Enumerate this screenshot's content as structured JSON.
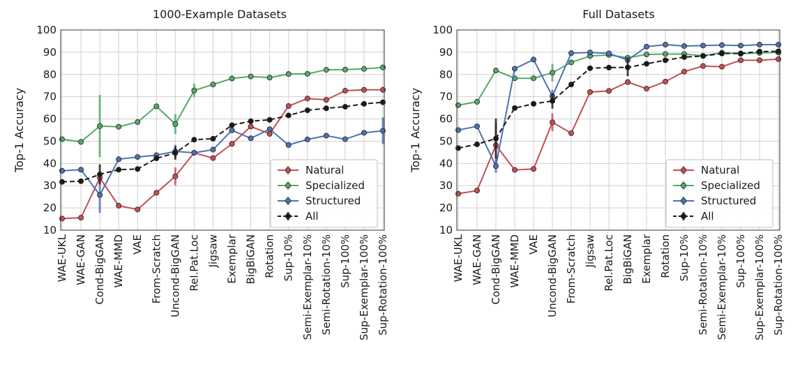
{
  "chart_data": [
    {
      "type": "line",
      "title": "1000-Example Datasets",
      "ylabel": "Top-1 Accuracy",
      "xlabel": "",
      "ylim": [
        10,
        100
      ],
      "yticks": [
        10,
        20,
        30,
        40,
        50,
        60,
        70,
        80,
        90,
        100
      ],
      "grid": true,
      "legend_position": "lower-right",
      "categories": [
        "WAE-UKL",
        "WAE-GAN",
        "Cond-BigGAN",
        "WAE-MMD",
        "VAE",
        "From-Scratch",
        "Uncond-BigGAN",
        "Rel.Pat.Loc",
        "Jigsaw",
        "Exemplar",
        "BigBiGAN",
        "Rotation",
        "Sup-10%",
        "Semi-Exemplar-10%",
        "Semi-Rotation-10%",
        "Sup-100%",
        "Sup-Exemplar-100%",
        "Sup-Rotation-100%"
      ],
      "series": [
        {
          "name": "Natural",
          "color": "#c44e52",
          "dashed": false,
          "values": [
            15.2,
            15.6,
            33.5,
            21,
            19.3,
            26.8,
            34.2,
            44.8,
            42.4,
            48.8,
            56.6,
            53.3,
            65.8,
            69.2,
            68.6,
            72.7,
            73.1,
            73.1
          ],
          "errors": [
            0,
            0,
            1,
            0,
            0,
            0,
            4,
            0,
            0,
            0,
            0,
            0,
            0,
            0,
            0,
            0,
            0,
            0
          ]
        },
        {
          "name": "Specialized",
          "color": "#55a868",
          "dashed": false,
          "values": [
            50.9,
            49.7,
            56.8,
            56.5,
            58.6,
            65.7,
            57.7,
            72.8,
            75.5,
            78.2,
            79.1,
            78.6,
            80.2,
            80.3,
            82.1,
            82.2,
            82.5,
            83.2
          ],
          "errors": [
            0,
            0,
            14,
            0,
            0,
            0,
            4.5,
            3,
            0,
            0,
            0,
            1,
            0,
            0,
            0,
            0,
            0,
            0
          ]
        },
        {
          "name": "Structured",
          "color": "#4c72b0",
          "dashed": false,
          "values": [
            36.7,
            37.2,
            25.8,
            41.9,
            42.9,
            43.7,
            45.4,
            44.8,
            46.2,
            54.9,
            51.3,
            55.4,
            48.3,
            50.8,
            52.5,
            50.9,
            53.8,
            54.7
          ],
          "errors": [
            0,
            0,
            8,
            0,
            0,
            0,
            3,
            0,
            0,
            0,
            0,
            0,
            0,
            0,
            0,
            0,
            0,
            6
          ]
        },
        {
          "name": "All",
          "color": "#1a1a1a",
          "dashed": true,
          "values": [
            31.7,
            32,
            35.1,
            37.2,
            37.5,
            42.3,
            44.7,
            50.7,
            51.1,
            57.2,
            59,
            59.6,
            61.6,
            63.9,
            64.8,
            65.5,
            66.8,
            67.5
          ],
          "errors": [
            0,
            0,
            4.5,
            0,
            0,
            0,
            3,
            0,
            0,
            0,
            0,
            0,
            0,
            0,
            0,
            0,
            0,
            0
          ]
        }
      ]
    },
    {
      "type": "line",
      "title": "Full Datasets",
      "ylabel": "Top-1 Accuracy",
      "xlabel": "",
      "ylim": [
        10,
        100
      ],
      "yticks": [
        10,
        20,
        30,
        40,
        50,
        60,
        70,
        80,
        90,
        100
      ],
      "grid": true,
      "legend_position": "lower-right",
      "categories": [
        "WAE-UKL",
        "WAE-GAN",
        "Cond-BigGAN",
        "WAE-MMD",
        "VAE",
        "Uncond-BigGAN",
        "From-Scratch",
        "Jigsaw",
        "Rel.Pat.Loc",
        "BigBiGAN",
        "Exemplar",
        "Rotation",
        "Sup-10%",
        "Semi-Rotation-10%",
        "Semi-Exemplar-10%",
        "Sup-100%",
        "Sup-Exemplar-100%",
        "Sup-Rotation-100%"
      ],
      "series": [
        {
          "name": "Natural",
          "color": "#c44e52",
          "dashed": false,
          "values": [
            26.4,
            27.8,
            48.2,
            37.1,
            37.5,
            58.5,
            53.6,
            72.1,
            72.6,
            76.6,
            73.6,
            76.8,
            81.3,
            83.8,
            83.5,
            86.4,
            86.4,
            86.9
          ],
          "errors": [
            0,
            0,
            10,
            0,
            0,
            4,
            0,
            0,
            0,
            0,
            0,
            0,
            0,
            0,
            0,
            0,
            0,
            0
          ]
        },
        {
          "name": "Specialized",
          "color": "#55a868",
          "dashed": false,
          "values": [
            66.2,
            67.7,
            81.8,
            78.3,
            78.3,
            80.8,
            85.4,
            88.3,
            88.8,
            87.5,
            89,
            89.2,
            89.2,
            88.4,
            89.8,
            89.3,
            89.7,
            89.9
          ],
          "errors": [
            0,
            0,
            0,
            0,
            0,
            4,
            0,
            0,
            0,
            0,
            0,
            0,
            0,
            0,
            0,
            0,
            0,
            0
          ]
        },
        {
          "name": "Structured",
          "color": "#4c72b0",
          "dashed": false,
          "values": [
            55,
            56.7,
            38.8,
            82.6,
            86.7,
            70.2,
            89.6,
            89.9,
            89.5,
            86.5,
            92.5,
            93.4,
            92.8,
            93,
            93.2,
            93,
            93.4,
            93.4
          ],
          "errors": [
            0,
            0,
            3,
            0,
            0,
            3,
            0,
            0,
            0,
            0,
            0,
            0,
            0,
            0,
            0,
            0,
            0,
            0
          ]
        },
        {
          "name": "All",
          "color": "#1a1a1a",
          "dashed": true,
          "values": [
            46.9,
            48.6,
            51.2,
            64.9,
            66.8,
            68.1,
            75.5,
            82.8,
            83.1,
            83.2,
            84.8,
            86.4,
            87.8,
            88.3,
            89.4,
            89.5,
            90.3,
            90.4
          ],
          "errors": [
            0,
            0,
            9,
            0,
            0,
            3.5,
            0,
            0,
            0,
            4,
            0,
            0,
            0,
            0,
            0,
            0,
            0,
            0
          ]
        }
      ]
    }
  ]
}
